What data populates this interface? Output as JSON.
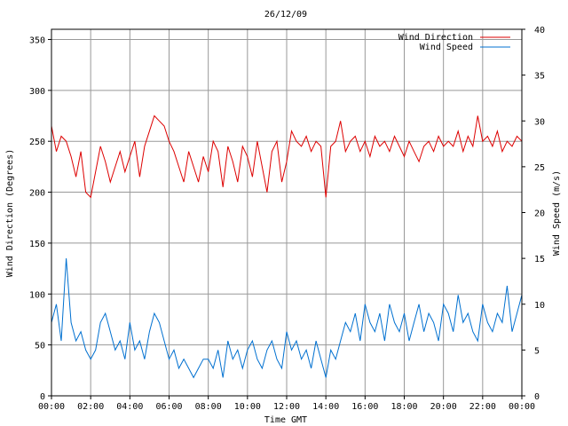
{
  "chart_data": {
    "type": "line",
    "title": "26/12/09",
    "xlabel": "Time GMT",
    "ylabel_left": "Wind Direction (Degrees)",
    "ylabel_right": "Wind Speed (m/s)",
    "x_tick_labels": [
      "00:00",
      "02:00",
      "04:00",
      "06:00",
      "08:00",
      "10:00",
      "12:00",
      "14:00",
      "16:00",
      "18:00",
      "20:00",
      "22:00",
      "00:00"
    ],
    "x_range_hours": [
      0,
      24
    ],
    "ylim_left": [
      0,
      360
    ],
    "ylim_right": [
      0,
      40
    ],
    "y_left_ticks": [
      0,
      50,
      100,
      150,
      200,
      250,
      300,
      350
    ],
    "y_right_ticks": [
      0,
      5,
      10,
      15,
      20,
      25,
      30,
      35,
      40
    ],
    "grid": true,
    "legend_position": "top-right",
    "series": [
      {
        "name": "Wind Direction",
        "axis": "left",
        "color": "#dd0000",
        "x_hours": [
          0,
          0.25,
          0.5,
          0.75,
          1,
          1.25,
          1.5,
          1.75,
          2,
          2.25,
          2.5,
          2.75,
          3,
          3.25,
          3.5,
          3.75,
          4,
          4.25,
          4.5,
          4.75,
          5,
          5.25,
          5.5,
          5.75,
          6,
          6.25,
          6.5,
          6.75,
          7,
          7.25,
          7.5,
          7.75,
          8,
          8.25,
          8.5,
          8.75,
          9,
          9.25,
          9.5,
          9.75,
          10,
          10.25,
          10.5,
          10.75,
          11,
          11.25,
          11.5,
          11.75,
          12,
          12.25,
          12.5,
          12.75,
          13,
          13.25,
          13.5,
          13.75,
          14,
          14.25,
          14.5,
          14.75,
          15,
          15.25,
          15.5,
          15.75,
          16,
          16.25,
          16.5,
          16.75,
          17,
          17.25,
          17.5,
          17.75,
          18,
          18.25,
          18.5,
          18.75,
          19,
          19.25,
          19.5,
          19.75,
          20,
          20.25,
          20.5,
          20.75,
          21,
          21.25,
          21.5,
          21.75,
          22,
          22.25,
          22.5,
          22.75,
          23,
          23.25,
          23.5,
          23.75,
          24
        ],
        "values": [
          265,
          240,
          255,
          250,
          235,
          215,
          240,
          200,
          195,
          220,
          245,
          230,
          210,
          225,
          240,
          220,
          235,
          250,
          215,
          245,
          260,
          275,
          270,
          265,
          250,
          240,
          225,
          210,
          240,
          225,
          210,
          235,
          220,
          250,
          240,
          205,
          245,
          230,
          210,
          245,
          235,
          215,
          250,
          225,
          200,
          240,
          250,
          210,
          230,
          260,
          250,
          245,
          255,
          240,
          250,
          245,
          195,
          245,
          250,
          270,
          240,
          250,
          255,
          240,
          250,
          235,
          255,
          245,
          250,
          240,
          255,
          245,
          235,
          250,
          240,
          230,
          245,
          250,
          240,
          255,
          245,
          250,
          245,
          260,
          240,
          255,
          245,
          275,
          250,
          255,
          245,
          260,
          240,
          250,
          245,
          255,
          250
        ]
      },
      {
        "name": "Wind Speed",
        "axis": "right",
        "color": "#0070d0",
        "x_hours": [
          0,
          0.25,
          0.5,
          0.75,
          1,
          1.25,
          1.5,
          1.75,
          2,
          2.25,
          2.5,
          2.75,
          3,
          3.25,
          3.5,
          3.75,
          4,
          4.25,
          4.5,
          4.75,
          5,
          5.25,
          5.5,
          5.75,
          6,
          6.25,
          6.5,
          6.75,
          7,
          7.25,
          7.5,
          7.75,
          8,
          8.25,
          8.5,
          8.75,
          9,
          9.25,
          9.5,
          9.75,
          10,
          10.25,
          10.5,
          10.75,
          11,
          11.25,
          11.5,
          11.75,
          12,
          12.25,
          12.5,
          12.75,
          13,
          13.25,
          13.5,
          13.75,
          14,
          14.25,
          14.5,
          14.75,
          15,
          15.25,
          15.5,
          15.75,
          16,
          16.25,
          16.5,
          16.75,
          17,
          17.25,
          17.5,
          17.75,
          18,
          18.25,
          18.5,
          18.75,
          19,
          19.25,
          19.5,
          19.75,
          20,
          20.25,
          20.5,
          20.75,
          21,
          21.25,
          21.5,
          21.75,
          22,
          22.25,
          22.5,
          22.75,
          23,
          23.25,
          23.5,
          23.75,
          24
        ],
        "values": [
          8,
          10,
          6,
          15,
          8,
          6,
          7,
          5,
          4,
          5,
          8,
          9,
          7,
          5,
          6,
          4,
          8,
          5,
          6,
          4,
          7,
          9,
          8,
          6,
          4,
          5,
          3,
          4,
          3,
          2,
          3,
          4,
          4,
          3,
          5,
          2,
          6,
          4,
          5,
          3,
          5,
          6,
          4,
          3,
          5,
          6,
          4,
          3,
          7,
          5,
          6,
          4,
          5,
          3,
          6,
          4,
          2,
          5,
          4,
          6,
          8,
          7,
          9,
          6,
          10,
          8,
          7,
          9,
          6,
          10,
          8,
          7,
          9,
          6,
          8,
          10,
          7,
          9,
          8,
          6,
          10,
          9,
          7,
          11,
          8,
          9,
          7,
          6,
          10,
          8,
          7,
          9,
          8,
          12,
          7,
          9,
          11
        ]
      }
    ]
  }
}
